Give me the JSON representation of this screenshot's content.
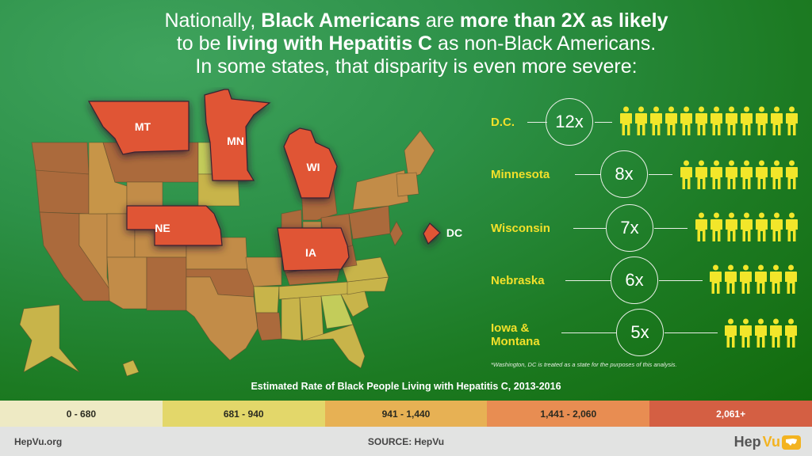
{
  "headline": {
    "line1_pre": "Nationally, ",
    "line1_b1": "Black Americans",
    "line1_mid": " are ",
    "line1_b2": "more than 2X as likely",
    "line2_pre": "to be ",
    "line2_b": "living with Hepatitis C",
    "line2_post": " as non-Black Americans.",
    "line3": "In some states, that disparity is even more severe:"
  },
  "map": {
    "highlighted_states": [
      {
        "abbr": "MT",
        "color": "#e05535"
      },
      {
        "abbr": "MN",
        "color": "#e05535"
      },
      {
        "abbr": "WI",
        "color": "#e05535"
      },
      {
        "abbr": "NE",
        "color": "#e05535"
      },
      {
        "abbr": "IA",
        "color": "#e05535"
      },
      {
        "abbr": "DC",
        "color": "#e05535"
      }
    ]
  },
  "disparities": [
    {
      "label": "D.C.",
      "multiplier": "12x",
      "count": 12
    },
    {
      "label": "Minnesota",
      "multiplier": "8x",
      "count": 8
    },
    {
      "label": "Wisconsin",
      "multiplier": "7x",
      "count": 7
    },
    {
      "label": "Nebraska",
      "multiplier": "6x",
      "count": 6
    },
    {
      "label_line1": "Iowa &",
      "label_line2": "Montana",
      "multiplier": "5x",
      "count": 5
    }
  ],
  "footnote": "*Washington, DC is treated as a state for the purposes of this analysis.",
  "legend": {
    "title": "Estimated Rate of Black People Living with Hepatitis C, 2013-2016",
    "bins": [
      {
        "label": "0 - 680",
        "color": "#eeeac4"
      },
      {
        "label": "681 - 940",
        "color": "#e3d76a"
      },
      {
        "label": "941 - 1,440",
        "color": "#e7b154"
      },
      {
        "label": "1,441 - 2,060",
        "color": "#e88d52"
      },
      {
        "label": "2,061+",
        "color": "#d45f43"
      }
    ]
  },
  "footer": {
    "site": "HepVu.org",
    "source": "SOURCE: HepVu",
    "brand_hep": "Hep",
    "brand_vu": "Vu"
  },
  "colors": {
    "accent_yellow": "#f2e02a",
    "highlight_red": "#e05535"
  }
}
